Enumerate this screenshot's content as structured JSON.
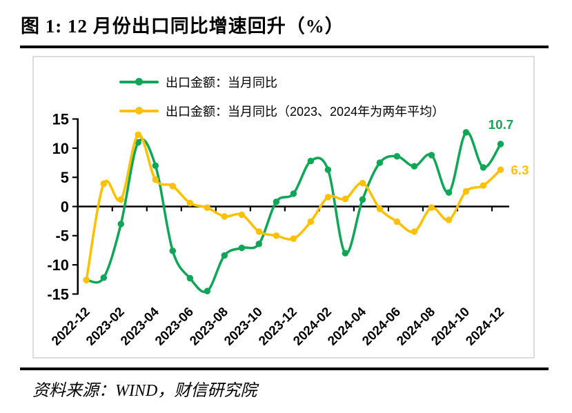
{
  "page": {
    "title": "图 1:  12 月份出口同比增速回升（%）",
    "source": "资料来源：WIND，财信研究院"
  },
  "colors": {
    "green": "#10a658",
    "yellow": "#ffc000",
    "axis": "#000000",
    "box_border": "#dcdcdc"
  },
  "chart_data": {
    "type": "line",
    "title": "图 1: 12 月份出口同比增速回升（%）",
    "grid": false,
    "legend_position": "top-left-inside",
    "ylim": [
      -15,
      15
    ],
    "y_ticks": [
      15,
      10,
      5,
      0,
      -5,
      -10,
      -15
    ],
    "x": [
      "2022-12",
      "2023-01",
      "2023-02",
      "2023-03",
      "2023-04",
      "2023-05",
      "2023-06",
      "2023-07",
      "2023-08",
      "2023-09",
      "2023-10",
      "2023-11",
      "2023-12",
      "2024-01",
      "2024-02",
      "2024-03",
      "2024-04",
      "2024-05",
      "2024-06",
      "2024-07",
      "2024-08",
      "2024-09",
      "2024-10",
      "2024-11",
      "2024-12"
    ],
    "x_tick_labels": [
      "2022-12",
      "2023-02",
      "2023-04",
      "2023-06",
      "2023-08",
      "2023-10",
      "2023-12",
      "2024-02",
      "2024-04",
      "2024-06",
      "2024-08",
      "2024-10",
      "2024-12"
    ],
    "series": [
      {
        "name": "出口金额：当月同比",
        "color": "#10a658",
        "end_label": "10.7",
        "values": [
          -12.6,
          -12.2,
          -3.0,
          11.0,
          7.0,
          -7.6,
          -12.3,
          -14.5,
          -8.4,
          -7.1,
          -6.4,
          0.8,
          2.2,
          7.8,
          6.3,
          -8.0,
          1.2,
          7.5,
          8.6,
          6.9,
          8.8,
          2.4,
          12.7,
          6.7,
          10.7
        ]
      },
      {
        "name": "出口金额：当月同比（2023、2024年为两年平均）",
        "color": "#ffc000",
        "end_label": "6.3",
        "values": [
          -12.6,
          3.9,
          1.2,
          12.3,
          4.6,
          3.5,
          0.6,
          -0.2,
          -1.7,
          -1.4,
          -4.3,
          -5.0,
          -5.5,
          -2.6,
          1.6,
          1.3,
          4.0,
          -0.4,
          -2.6,
          -4.3,
          -0.2,
          -2.3,
          2.6,
          3.6,
          6.3
        ]
      }
    ],
    "annotations": [
      {
        "text": "10.7",
        "series": "出口金额：当月同比",
        "x": "2024-12"
      },
      {
        "text": "6.3",
        "series": "出口金额：当月同比（2023、2024年为两年平均）",
        "x": "2024-12"
      }
    ]
  }
}
